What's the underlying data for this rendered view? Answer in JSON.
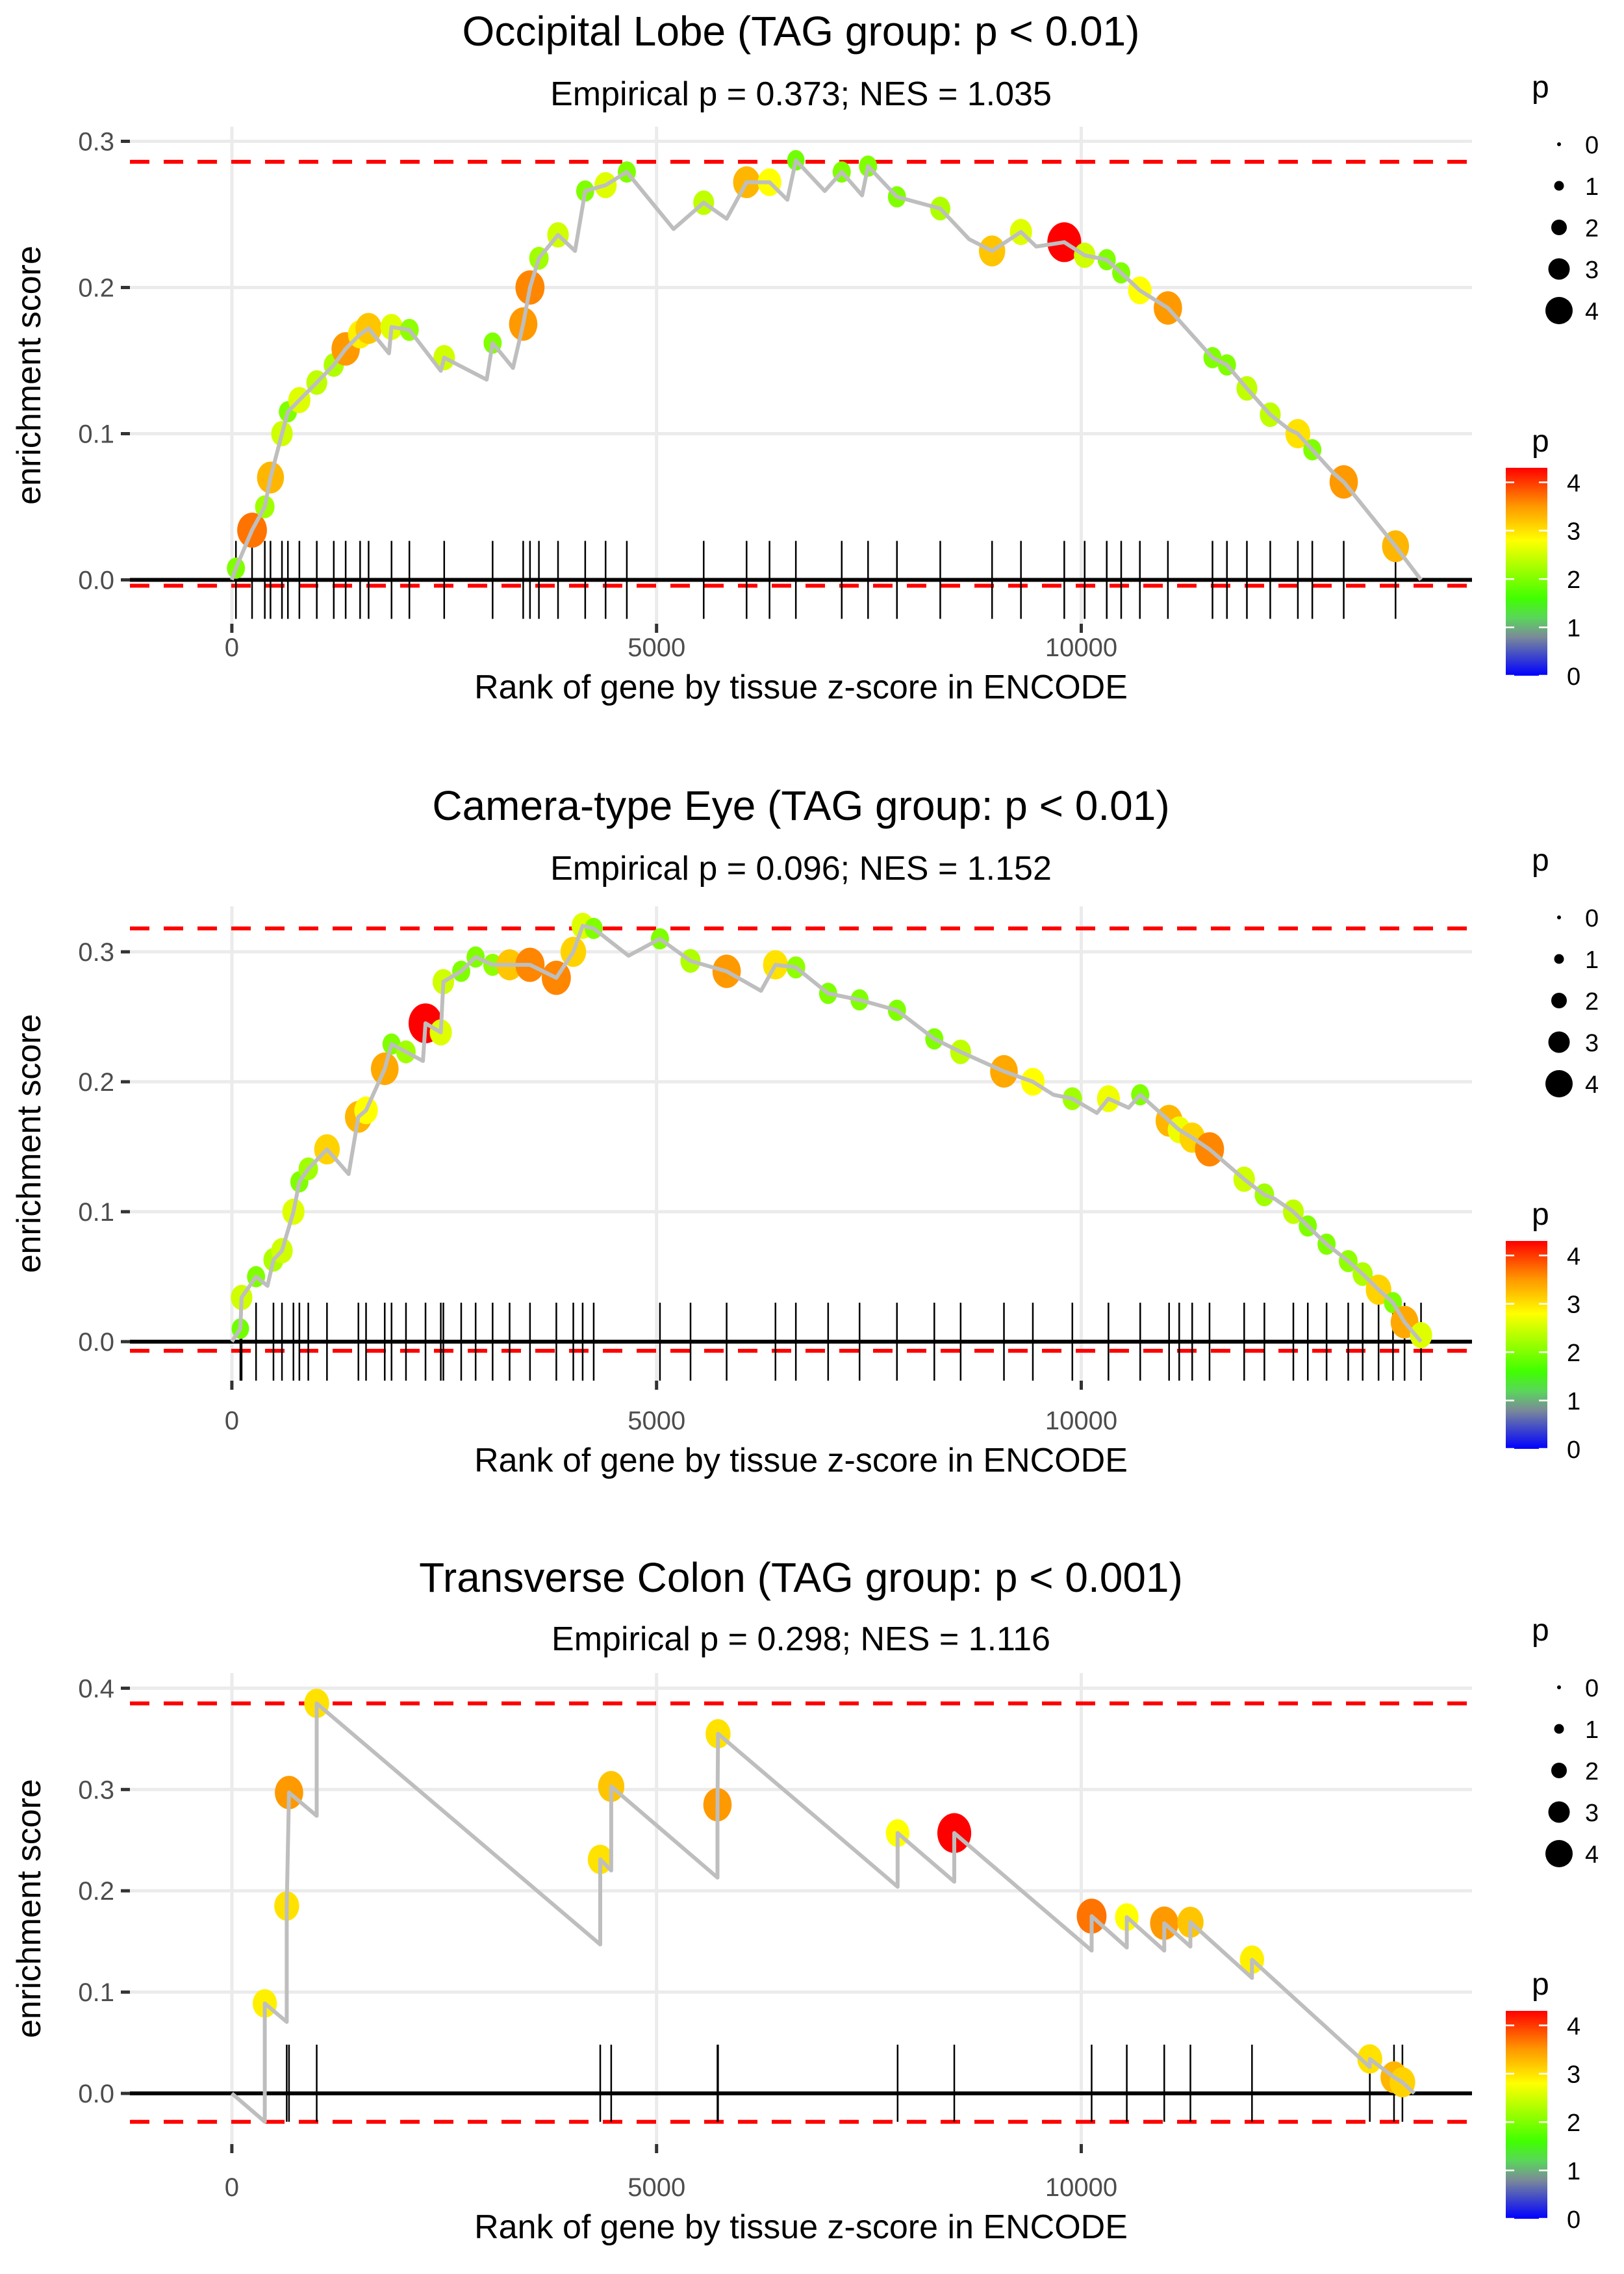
{
  "chart_data": [
    {
      "type": "line",
      "title": "Occipital Lobe (TAG group: p < 0.01)",
      "subtitle": "Empirical p = 0.373; NES = 1.035",
      "xlabel": "Rank of gene by tissue z-score in ENCODE",
      "ylabel": "enrichment score",
      "x_ticks": [
        0,
        5000,
        10000
      ],
      "x_tick_labels": [
        "0",
        "5000",
        "10000"
      ],
      "y_ticks": [
        0.0,
        0.1,
        0.2,
        0.3
      ],
      "y_tick_labels": [
        "0.0",
        "0.1",
        "0.2",
        "0.3"
      ],
      "xlim": [
        -1200,
        14600
      ],
      "ylim": [
        -0.03,
        0.31
      ],
      "grid": true,
      "max_es_line": 0.286,
      "min_es_line": -0.004,
      "x_end": 14000,
      "series": [
        {
          "name": "running enrichment score",
          "x": [
            0,
            48,
            238,
            388,
            455,
            590,
            660,
            795,
            1000,
            1200,
            1340,
            1510,
            1610,
            1850,
            1880,
            2090,
            2460,
            2500,
            3000,
            3070,
            3310,
            3430,
            3510,
            3615,
            3840,
            4040,
            4160,
            4400,
            4650,
            5200,
            5555,
            5825,
            6060,
            6330,
            6540,
            6640,
            6980,
            7180,
            7420,
            7490,
            7830,
            8340,
            8680,
            8950,
            9290,
            9470,
            9800,
            10040,
            10300,
            10470,
            10690,
            11020,
            11545,
            11715,
            11950,
            12225,
            12445,
            12550,
            12720,
            12970,
            13090,
            13700,
            14000
          ],
          "y": [
            0,
            0.008,
            0.034,
            0.05,
            0.07,
            0.1,
            0.115,
            0.123,
            0.135,
            0.147,
            0.158,
            0.168,
            0.172,
            0.155,
            0.173,
            0.171,
            0.143,
            0.152,
            0.137,
            0.162,
            0.145,
            0.175,
            0.2,
            0.22,
            0.236,
            0.225,
            0.266,
            0.27,
            0.279,
            0.24,
            0.258,
            0.247,
            0.272,
            0.272,
            0.26,
            0.287,
            0.266,
            0.279,
            0.263,
            0.283,
            0.262,
            0.254,
            0.233,
            0.225,
            0.238,
            0.228,
            0.231,
            0.222,
            0.219,
            0.21,
            0.198,
            0.186,
            0.152,
            0.147,
            0.131,
            0.113,
            0.103,
            0.1,
            0.089,
            0.073,
            0.067,
            0.023,
            0
          ]
        },
        {
          "name": "genes (p)",
          "x": [
            48,
            238,
            388,
            455,
            590,
            660,
            795,
            1000,
            1200,
            1340,
            1510,
            1610,
            1880,
            2090,
            2500,
            3070,
            3430,
            3510,
            3615,
            3840,
            4160,
            4400,
            4650,
            5555,
            6060,
            6330,
            6640,
            7180,
            7490,
            7830,
            8340,
            8950,
            9290,
            9800,
            10040,
            10300,
            10470,
            10690,
            11020,
            11545,
            11715,
            11950,
            12225,
            12550,
            12720,
            13090,
            13700
          ],
          "y": [
            0.008,
            0.034,
            0.05,
            0.07,
            0.1,
            0.115,
            0.123,
            0.135,
            0.147,
            0.158,
            0.168,
            0.172,
            0.173,
            0.171,
            0.152,
            0.162,
            0.175,
            0.2,
            0.22,
            0.236,
            0.266,
            0.27,
            0.279,
            0.258,
            0.272,
            0.272,
            0.287,
            0.279,
            0.283,
            0.262,
            0.254,
            0.225,
            0.238,
            0.231,
            0.222,
            0.219,
            0.21,
            0.198,
            0.186,
            0.152,
            0.147,
            0.131,
            0.113,
            0.1,
            0.089,
            0.067,
            0.023
          ],
          "p": [
            2.0,
            3.7,
            2.2,
            3.3,
            2.5,
            2.0,
            2.6,
            2.4,
            2.3,
            3.5,
            2.9,
            3.2,
            2.6,
            2.1,
            2.5,
            2.0,
            3.5,
            3.6,
            2.2,
            2.5,
            2.0,
            2.6,
            2.0,
            2.4,
            3.3,
            2.8,
            1.9,
            2.0,
            2.0,
            2.0,
            2.3,
            3.2,
            2.6,
            4.3,
            2.5,
            2.0,
            2.0,
            2.8,
            3.5,
            2.0,
            2.0,
            2.4,
            2.4,
            3.0,
            2.0,
            3.5,
            3.3
          ]
        }
      ]
    },
    {
      "type": "line",
      "title": "Camera-type Eye (TAG group: p < 0.01)",
      "subtitle": "Empirical p = 0.096; NES = 1.152",
      "xlabel": "Rank of gene by tissue z-score in ENCODE",
      "ylabel": "enrichment score",
      "x_ticks": [
        0,
        5000,
        10000
      ],
      "x_tick_labels": [
        "0",
        "5000",
        "10000"
      ],
      "y_ticks": [
        0.0,
        0.1,
        0.2,
        0.3
      ],
      "y_tick_labels": [
        "0.0",
        "0.1",
        "0.2",
        "0.3"
      ],
      "xlim": [
        -1200,
        14600
      ],
      "ylim": [
        -0.03,
        0.335
      ],
      "grid": true,
      "max_es_line": 0.318,
      "min_es_line": -0.007,
      "x_end": 14000,
      "series": [
        {
          "name": "running enrichment score",
          "x": [
            0,
            100,
            115,
            285,
            420,
            490,
            590,
            725,
            795,
            900,
            1120,
            1375,
            1490,
            1580,
            1800,
            1880,
            2050,
            2250,
            2280,
            2460,
            2490,
            2700,
            2870,
            3070,
            3270,
            3510,
            3820,
            4020,
            4130,
            4260,
            4670,
            5040,
            5400,
            5825,
            6230,
            6400,
            6640,
            7020,
            7390,
            7830,
            8270,
            8580,
            9090,
            9430,
            9673,
            9895,
            10184,
            10320,
            10558,
            10694,
            11034,
            11153,
            11306,
            11510,
            11918,
            12156,
            12275,
            12497,
            12667,
            12888,
            13143,
            13313,
            13500,
            13670,
            13806,
            14000
          ],
          "y": [
            0,
            0.01,
            0.034,
            0.05,
            0.043,
            0.063,
            0.07,
            0.1,
            0.123,
            0.133,
            0.148,
            0.129,
            0.173,
            0.178,
            0.21,
            0.229,
            0.223,
            0.216,
            0.245,
            0.238,
            0.277,
            0.285,
            0.296,
            0.29,
            0.29,
            0.29,
            0.28,
            0.3,
            0.32,
            0.318,
            0.297,
            0.31,
            0.293,
            0.285,
            0.27,
            0.29,
            0.288,
            0.268,
            0.263,
            0.255,
            0.233,
            0.223,
            0.208,
            0.2,
            0.19,
            0.187,
            0.176,
            0.187,
            0.18,
            0.19,
            0.17,
            0.163,
            0.157,
            0.148,
            0.125,
            0.113,
            0.11,
            0.1,
            0.089,
            0.075,
            0.062,
            0.052,
            0.04,
            0.03,
            0.015,
            0
          ]
        },
        {
          "name": "genes (p)",
          "x": [
            100,
            115,
            285,
            490,
            590,
            725,
            795,
            900,
            1120,
            1490,
            1580,
            1800,
            1880,
            2050,
            2280,
            2460,
            2490,
            2700,
            2870,
            3070,
            3270,
            3510,
            3820,
            4020,
            4130,
            4260,
            5040,
            5400,
            5825,
            6400,
            6640,
            7020,
            7390,
            7830,
            8270,
            8580,
            9090,
            9430,
            9895,
            10320,
            10694,
            11034,
            11153,
            11306,
            11510,
            11918,
            12156,
            12497,
            12667,
            12888,
            13143,
            13313,
            13500,
            13670,
            13806,
            14000
          ],
          "y": [
            0.01,
            0.034,
            0.05,
            0.063,
            0.07,
            0.1,
            0.123,
            0.133,
            0.148,
            0.173,
            0.178,
            0.21,
            0.229,
            0.223,
            0.245,
            0.238,
            0.277,
            0.285,
            0.296,
            0.29,
            0.29,
            0.29,
            0.28,
            0.3,
            0.32,
            0.318,
            0.31,
            0.293,
            0.285,
            0.29,
            0.288,
            0.268,
            0.263,
            0.255,
            0.233,
            0.223,
            0.208,
            0.2,
            0.187,
            0.187,
            0.19,
            0.17,
            0.163,
            0.157,
            0.148,
            0.125,
            0.113,
            0.1,
            0.089,
            0.075,
            0.062,
            0.052,
            0.04,
            0.03,
            0.015,
            0.005
          ],
          "p": [
            1.9,
            2.5,
            2.0,
            2.3,
            2.5,
            2.6,
            2.0,
            2.2,
            3.1,
            3.3,
            2.8,
            3.4,
            2.0,
            2.2,
            4.3,
            2.6,
            2.5,
            2.0,
            2.0,
            2.1,
            3.2,
            3.6,
            3.6,
            3.1,
            2.6,
            2.0,
            2.0,
            2.3,
            3.5,
            3.0,
            2.1,
            2.0,
            2.0,
            2.0,
            2.0,
            2.4,
            3.4,
            2.8,
            2.2,
            2.7,
            2.0,
            3.3,
            2.7,
            3.1,
            3.6,
            2.5,
            2.2,
            2.4,
            2.0,
            2.0,
            2.1,
            2.3,
            3.1,
            2.0,
            3.4,
            2.6
          ]
        }
      ]
    },
    {
      "type": "line",
      "title": "Transverse Colon (TAG group: p < 0.001)",
      "subtitle": "Empirical p = 0.298; NES = 1.116",
      "xlabel": "Rank of gene by tissue z-score in ENCODE",
      "ylabel": "enrichment score",
      "x_ticks": [
        0,
        5000,
        10000
      ],
      "x_tick_labels": [
        "0",
        "5000",
        "10000"
      ],
      "y_ticks": [
        0.0,
        0.1,
        0.2,
        0.3,
        0.4
      ],
      "y_tick_labels": [
        "0.0",
        "0.1",
        "0.2",
        "0.3",
        "0.4"
      ],
      "xlim": [
        -1200,
        14600
      ],
      "ylim": [
        -0.05,
        0.415
      ],
      "grid": true,
      "max_es_line": 0.385,
      "min_es_line": -0.028,
      "x_end": 13920,
      "series": [
        {
          "name": "running enrichment score",
          "x": [
            0,
            388,
            388,
            646,
            646,
            673,
            999,
            999,
            4337,
            4337,
            4466,
            4466,
            5717,
            5717,
            5724,
            7838,
            7838,
            8505,
            8505,
            10122,
            10122,
            10536,
            10536,
            10977,
            10977,
            11285,
            11285,
            12010,
            12010,
            13397,
            13397,
            13682,
            13781,
            13920
          ],
          "y": [
            0,
            -0.028,
            0.0888,
            0.0706,
            0.185,
            0.297,
            0.274,
            0.385,
            0.147,
            0.231,
            0.22,
            0.303,
            0.213,
            0.285,
            0.355,
            0.204,
            0.257,
            0.209,
            0.257,
            0.141,
            0.175,
            0.144,
            0.174,
            0.141,
            0.168,
            0.145,
            0.169,
            0.114,
            0.132,
            0.026,
            0.034,
            0.016,
            0.011,
            0
          ]
        },
        {
          "name": "genes (p)",
          "x": [
            388,
            646,
            673,
            999,
            4337,
            4466,
            5717,
            5724,
            7838,
            8505,
            10122,
            10536,
            10977,
            11285,
            12010,
            13397,
            13682,
            13781
          ],
          "y": [
            0.0888,
            0.185,
            0.297,
            0.385,
            0.231,
            0.303,
            0.285,
            0.355,
            0.257,
            0.257,
            0.175,
            0.174,
            0.168,
            0.169,
            0.132,
            0.034,
            0.016,
            0.011
          ],
          "p": [
            2.9,
            3.0,
            3.5,
            3.0,
            3.0,
            3.2,
            3.5,
            3.0,
            2.8,
            4.3,
            3.7,
            2.8,
            3.5,
            3.2,
            2.9,
            3.0,
            3.3,
            3.1
          ]
        }
      ]
    }
  ],
  "legend": {
    "size_title": "p",
    "size_levels": [
      0,
      1,
      2,
      3,
      4
    ],
    "size_labels": [
      "0",
      "1",
      "2",
      "3",
      "4"
    ],
    "color_title": "p",
    "color_ticks": [
      0,
      1,
      2,
      3,
      4
    ],
    "color_labels": [
      "0",
      "1",
      "2",
      "3",
      "4"
    ],
    "color_range": [
      0,
      4.3
    ],
    "colorscale": [
      {
        "at": 0.0,
        "color": "#0000ff"
      },
      {
        "at": 0.8,
        "color": "#7a8a99"
      },
      {
        "at": 1.2,
        "color": "#5ad65a"
      },
      {
        "at": 1.6,
        "color": "#40ff00"
      },
      {
        "at": 2.8,
        "color": "#ffff00"
      },
      {
        "at": 3.5,
        "color": "#ff9900"
      },
      {
        "at": 4.3,
        "color": "#ff0000"
      }
    ]
  },
  "colors": {
    "curve": "#bebebe",
    "es_bounds": "#ff0000",
    "zero_line": "#000000",
    "grid": "#ebebeb",
    "rug": "#000000"
  }
}
